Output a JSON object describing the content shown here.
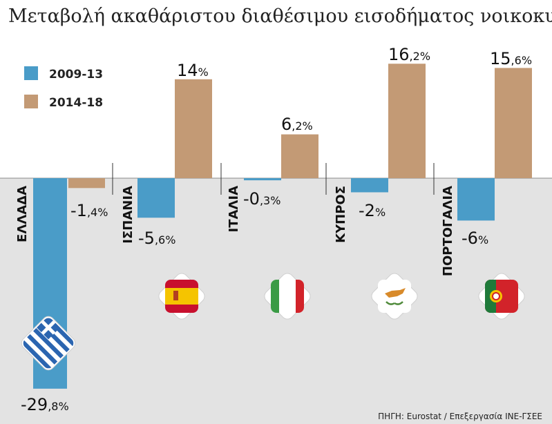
{
  "title": "Μεταβολή ακαθάριστου διαθέσιμου εισοδήματος νοικοκυριών",
  "source": "ΠΗΓΗ: Eurostat / Επεξεργασία INE-ΓΣΕΕ",
  "colors": {
    "series_2009_13": "#4a9cc8",
    "series_2014_18": "#c39a75",
    "negative_area": "#e3e3e3"
  },
  "chart_data": {
    "type": "bar",
    "categories": [
      "ΕΛΛΑΔΑ",
      "ΙΣΠΑΝΙΑ",
      "ΙΤΑΛΙΑ",
      "ΚΥΠΡΟΣ",
      "ΠΟΡΤΟΓΑΛΙΑ"
    ],
    "series": [
      {
        "name": "2009-13",
        "values": [
          -29.8,
          -5.6,
          -0.3,
          -2,
          -6
        ],
        "labels": [
          {
            "int": "-29",
            "dec": ",8%"
          },
          {
            "int": "-5",
            "dec": ",6%"
          },
          {
            "int": "-0",
            "dec": ",3%"
          },
          {
            "int": "-2",
            "dec": "%"
          },
          {
            "int": "-6",
            "dec": "%"
          }
        ]
      },
      {
        "name": "2014-18",
        "values": [
          -1.4,
          14,
          6.2,
          16.2,
          15.6
        ],
        "labels": [
          {
            "int": "-1",
            "dec": ",4%"
          },
          {
            "int": "14",
            "dec": "%"
          },
          {
            "int": "6",
            "dec": ",2%"
          },
          {
            "int": "16",
            "dec": ",2%"
          },
          {
            "int": "15",
            "dec": ",6%"
          }
        ]
      }
    ],
    "legend_position": "top-left",
    "flags": [
      "greece-flag-icon",
      "spain-flag-icon",
      "italy-flag-icon",
      "cyprus-flag-icon",
      "portugal-flag-icon"
    ]
  }
}
